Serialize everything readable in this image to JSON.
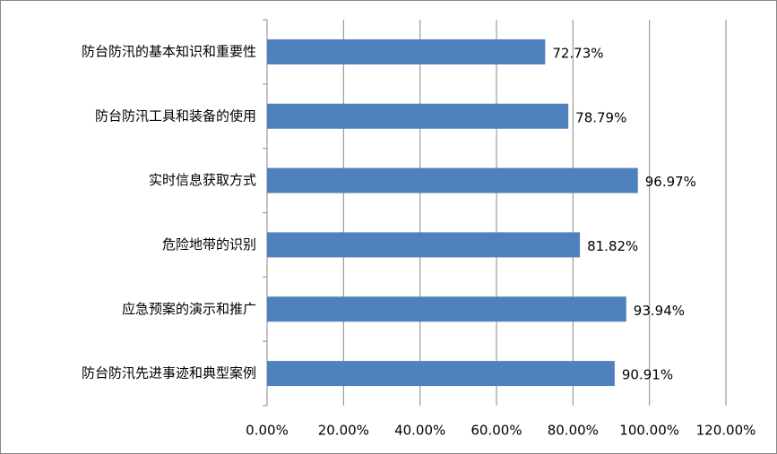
{
  "chart_data": {
    "type": "bar",
    "orientation": "horizontal",
    "categories": [
      "防台防汛的基本知识和重要性",
      "防台防汛工具和装备的使用",
      "实时信息获取方式",
      "危险地带的识别",
      "应急预案的演示和推广",
      "防台防汛先进事迹和典型案例"
    ],
    "values": [
      72.73,
      78.79,
      96.97,
      81.82,
      93.94,
      90.91
    ],
    "value_labels": [
      "72.73%",
      "78.79%",
      "96.97%",
      "81.82%",
      "93.94%",
      "90.91%"
    ],
    "color": "#4f81bd",
    "xlim": [
      0,
      120
    ],
    "xticks": [
      {
        "value": 0,
        "label": "0.00%"
      },
      {
        "value": 20,
        "label": "20.00%"
      },
      {
        "value": 40,
        "label": "40.00%"
      },
      {
        "value": 60,
        "label": "60.00%"
      },
      {
        "value": 80,
        "label": "80.00%"
      },
      {
        "value": 100,
        "label": "100.00%"
      },
      {
        "value": 120,
        "label": "120.00%"
      }
    ],
    "grid": true
  }
}
